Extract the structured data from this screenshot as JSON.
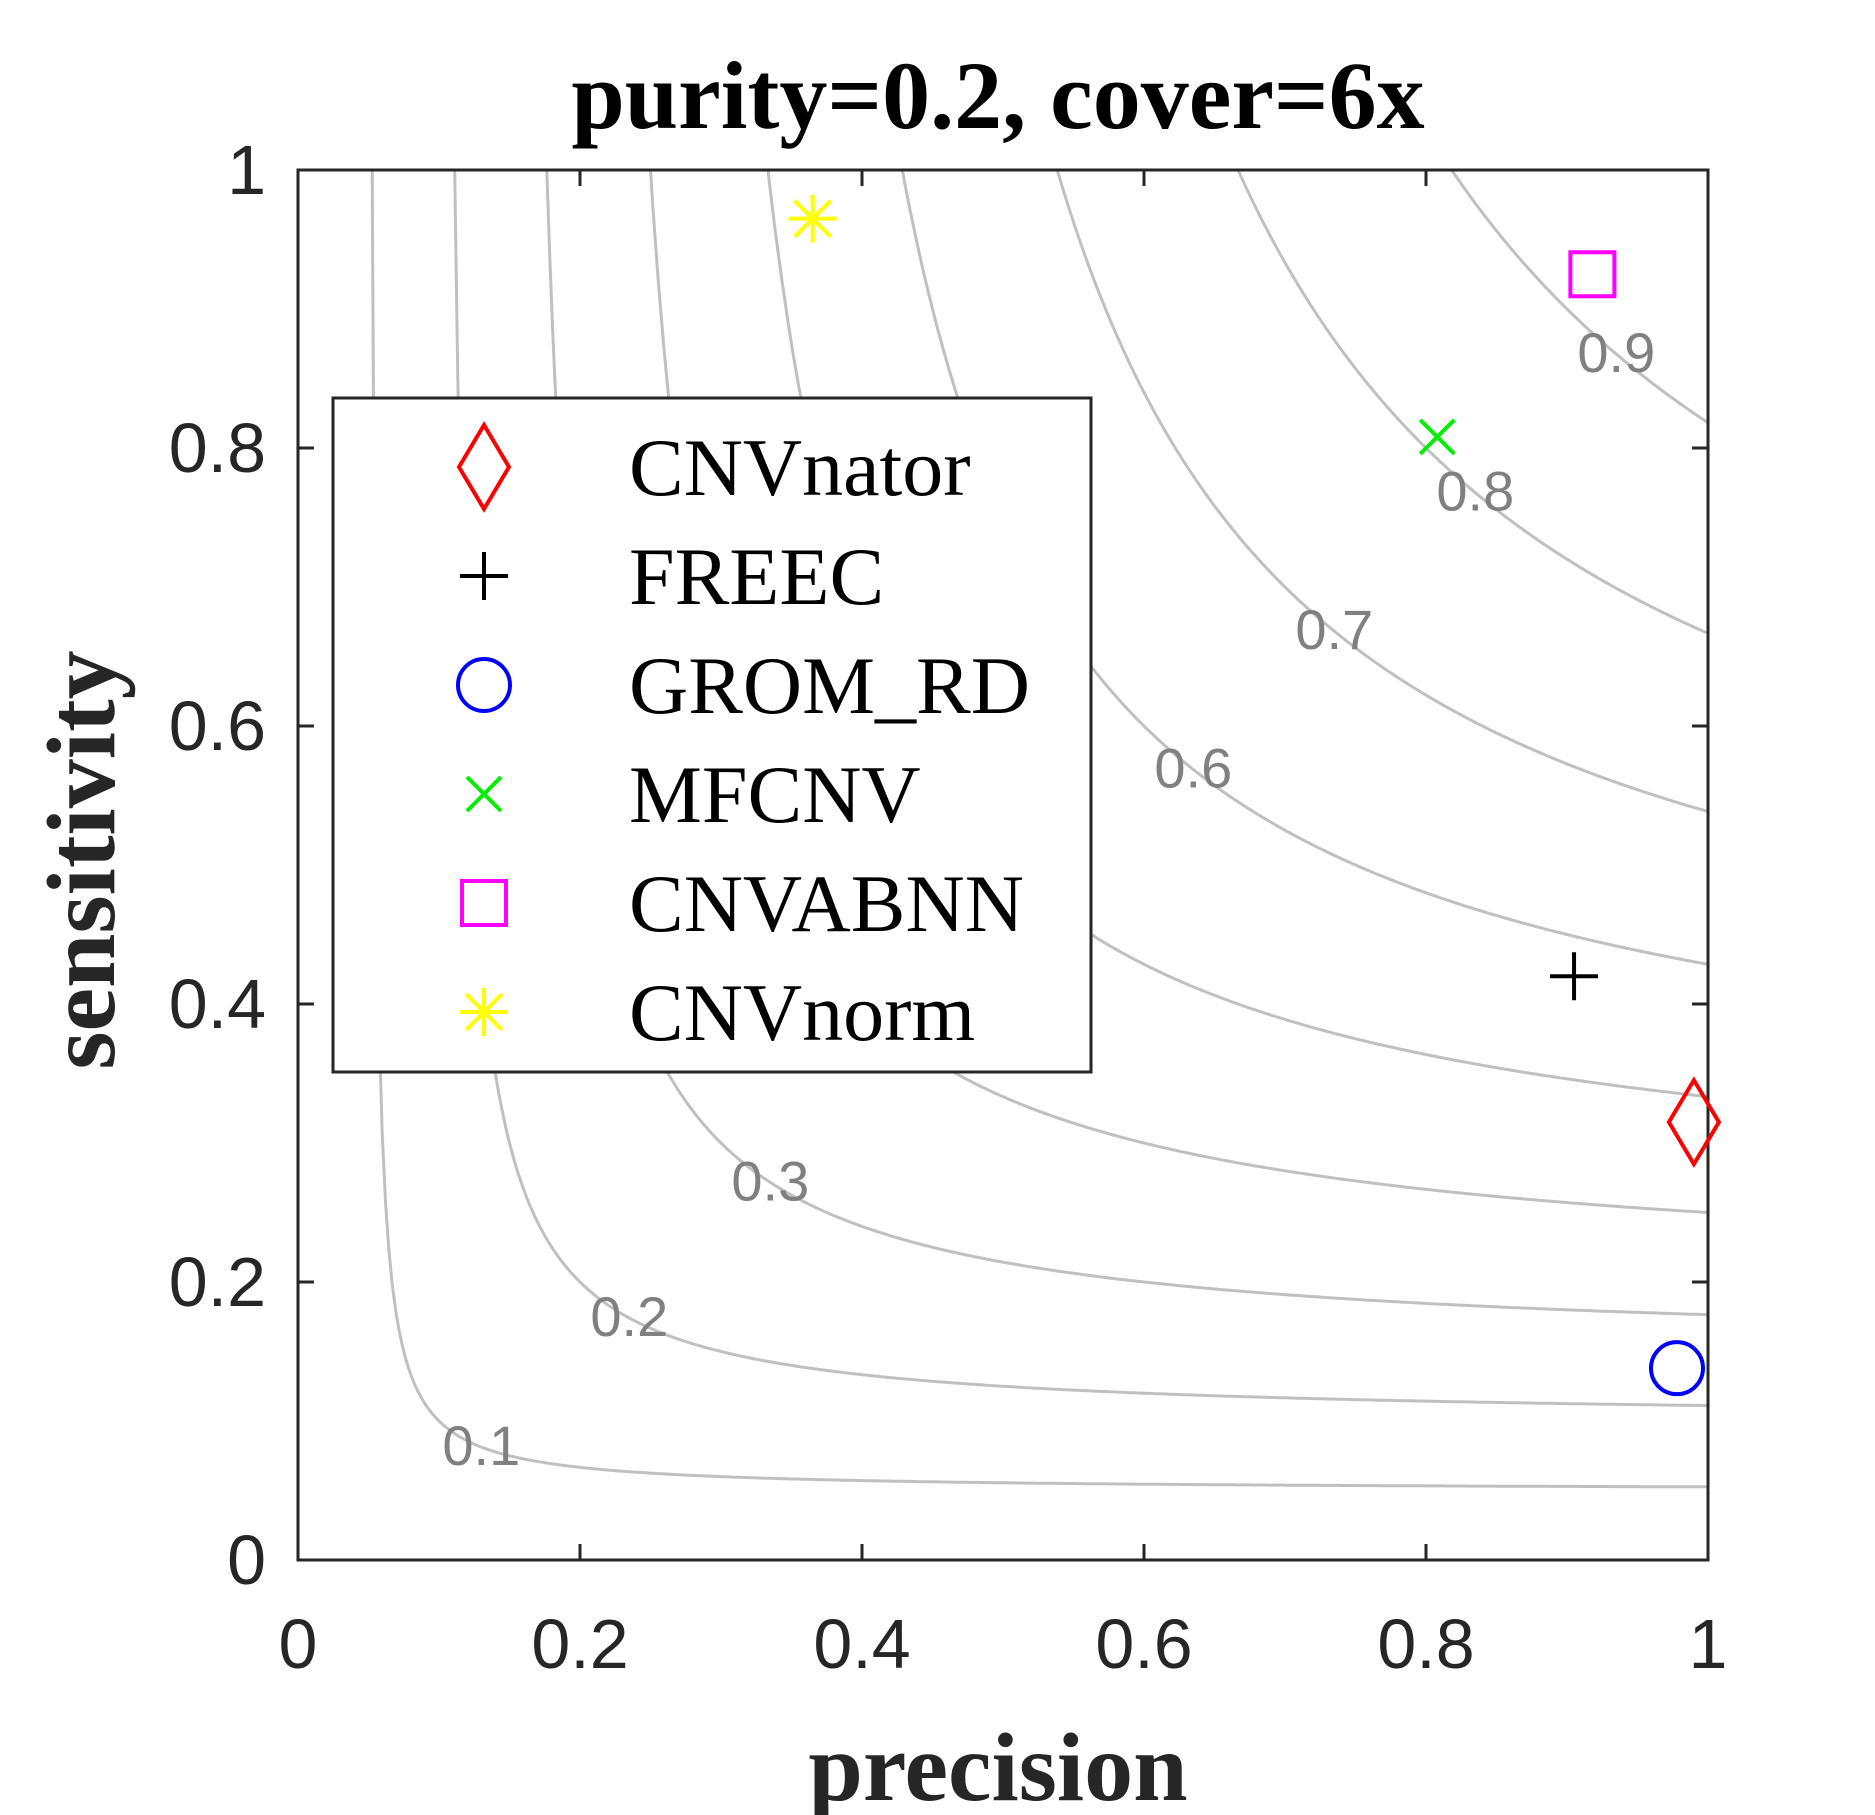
{
  "chart_data": {
    "type": "scatter",
    "title": "purity=0.2, cover=6x",
    "xlabel": "precision",
    "ylabel": "sensitivity",
    "xlim": [
      0,
      1
    ],
    "ylim": [
      0,
      1
    ],
    "xticks": [
      "0",
      "0.2",
      "0.4",
      "0.6",
      "0.8",
      "1"
    ],
    "yticks": [
      "0",
      "0.2",
      "0.4",
      "0.6",
      "0.8",
      "1"
    ],
    "grid": false,
    "legend_position": "center-left",
    "contours": {
      "metric": "F1",
      "levels": [
        0.1,
        0.2,
        0.3,
        0.4,
        0.5,
        0.6,
        0.7,
        0.8,
        0.9
      ],
      "labels": [
        "0.1",
        "0.2",
        "0.3",
        "0.6",
        "0.7",
        "0.8",
        "0.9"
      ],
      "color": "#c0c0c0"
    },
    "series": [
      {
        "name": "CNVnator",
        "marker": "diamond",
        "color": "#ff0000",
        "x": 0.99,
        "y": 0.315
      },
      {
        "name": "FREEC",
        "marker": "plus",
        "color": "#000000",
        "x": 0.905,
        "y": 0.42
      },
      {
        "name": "GROM_RD",
        "marker": "circle",
        "color": "#0000ff",
        "x": 0.978,
        "y": 0.138
      },
      {
        "name": "MFCNV",
        "marker": "x",
        "color": "#00ee00",
        "x": 0.808,
        "y": 0.808
      },
      {
        "name": "CNVABNN",
        "marker": "square",
        "color": "#ff00ff",
        "x": 0.918,
        "y": 0.925
      },
      {
        "name": "CNVnorm",
        "marker": "asterisk",
        "color": "#ffff00",
        "x": 0.365,
        "y": 0.965
      }
    ]
  }
}
